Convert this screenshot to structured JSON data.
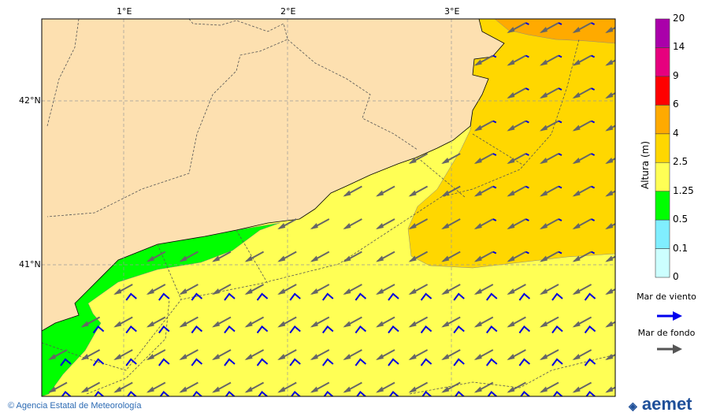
{
  "map": {
    "lon_labels": [
      "1°E",
      "2°E",
      "3°E"
    ],
    "lat_labels": [
      "42°N",
      "41°N"
    ],
    "colors": {
      "land": "#fde0b0",
      "sea_1_25_2_5": "#ffff55",
      "sea_2_5_4": "#ffd700",
      "sea_4_6": "#ffaa00",
      "sea_0_5_1_25": "#00ff00",
      "wind_sea": "#0000dd",
      "swell": "#666666"
    }
  },
  "colorbar": {
    "title": "Altura (m)",
    "ticks": [
      "0",
      "0.1",
      "0.5",
      "1.25",
      "2.5",
      "4",
      "6",
      "9",
      "14",
      "20"
    ],
    "colors": [
      "#ccffff",
      "#80eeff",
      "#00ff00",
      "#ffff55",
      "#ffd700",
      "#ffaa00",
      "#ff0000",
      "#e6007e",
      "#aa00aa"
    ]
  },
  "legend": {
    "wind_sea": "Mar de viento",
    "swell": "Mar de fondo"
  },
  "footer": {
    "credit": "© Agencia Estatal de Meteorología",
    "logo": "aemet"
  }
}
